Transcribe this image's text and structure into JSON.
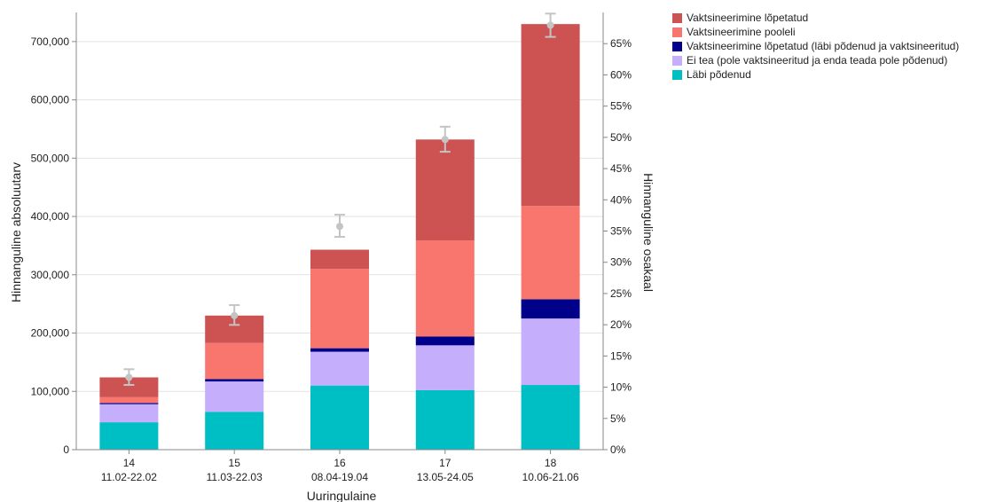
{
  "chart_data": {
    "type": "bar",
    "stacked": true,
    "categories": [
      {
        "wave": "14",
        "dates": "11.02-22.02"
      },
      {
        "wave": "15",
        "dates": "11.03-22.03"
      },
      {
        "wave": "16",
        "dates": "08.04-19.04"
      },
      {
        "wave": "17",
        "dates": "13.05-24.05"
      },
      {
        "wave": "18",
        "dates": "10.06-21.06"
      }
    ],
    "series": [
      {
        "name": "Läbi põdenud",
        "color": "#00bfc4",
        "values": [
          47000,
          65000,
          110000,
          102000,
          111000
        ]
      },
      {
        "name": "Ei tea (pole vaktsineeritud ja enda teada pole põdenud)",
        "color": "#c5aefc",
        "values": [
          31000,
          52000,
          58000,
          77000,
          114000
        ]
      },
      {
        "name": "Vaktsineerimine lõpetatud (läbi põdenud ja vaktsineeritud)",
        "color": "#00008b",
        "values": [
          2000,
          4000,
          6000,
          15000,
          33000
        ]
      },
      {
        "name": "Vaktsineerimine pooleli",
        "color": "#f8766d",
        "values": [
          10000,
          62000,
          136000,
          165000,
          160000
        ]
      },
      {
        "name": "Vaktsineerimine lõpetatud",
        "color": "#cd5252",
        "values": [
          34000,
          47000,
          33000,
          173000,
          312000
        ]
      }
    ],
    "error_bars": [
      {
        "center": 124000,
        "low": 111000,
        "high": 138000
      },
      {
        "center": 230000,
        "low": 214000,
        "high": 248000
      },
      {
        "center": 383000,
        "low": 365000,
        "high": 403000
      },
      {
        "center": 532000,
        "low": 511000,
        "high": 554000
      },
      {
        "center": 728000,
        "low": 708000,
        "high": 748000
      }
    ],
    "xlabel": "Uuringulaine",
    "ylabel": "Hinnanguline absoluutarv",
    "y2label": "Hinnanguline osakaal",
    "ylim": [
      0,
      750000
    ],
    "y_ticks": [
      0,
      100000,
      200000,
      300000,
      400000,
      500000,
      600000,
      700000
    ],
    "y_tick_labels": [
      "0",
      "100,000",
      "200,000",
      "300,000",
      "400,000",
      "500,000",
      "600,000",
      "700,000"
    ],
    "y2lim": [
      0,
      70
    ],
    "y2_ticks": [
      0,
      5,
      10,
      15,
      20,
      25,
      30,
      35,
      40,
      45,
      50,
      55,
      60,
      65
    ],
    "y2_tick_labels": [
      "0%",
      "5%",
      "10%",
      "15%",
      "20%",
      "25%",
      "30%",
      "35%",
      "40%",
      "45%",
      "50%",
      "55%",
      "60%",
      "65%"
    ],
    "legend_order": [
      4,
      3,
      2,
      1,
      0
    ],
    "legend_position": "top-right",
    "grid": "horizontal"
  }
}
